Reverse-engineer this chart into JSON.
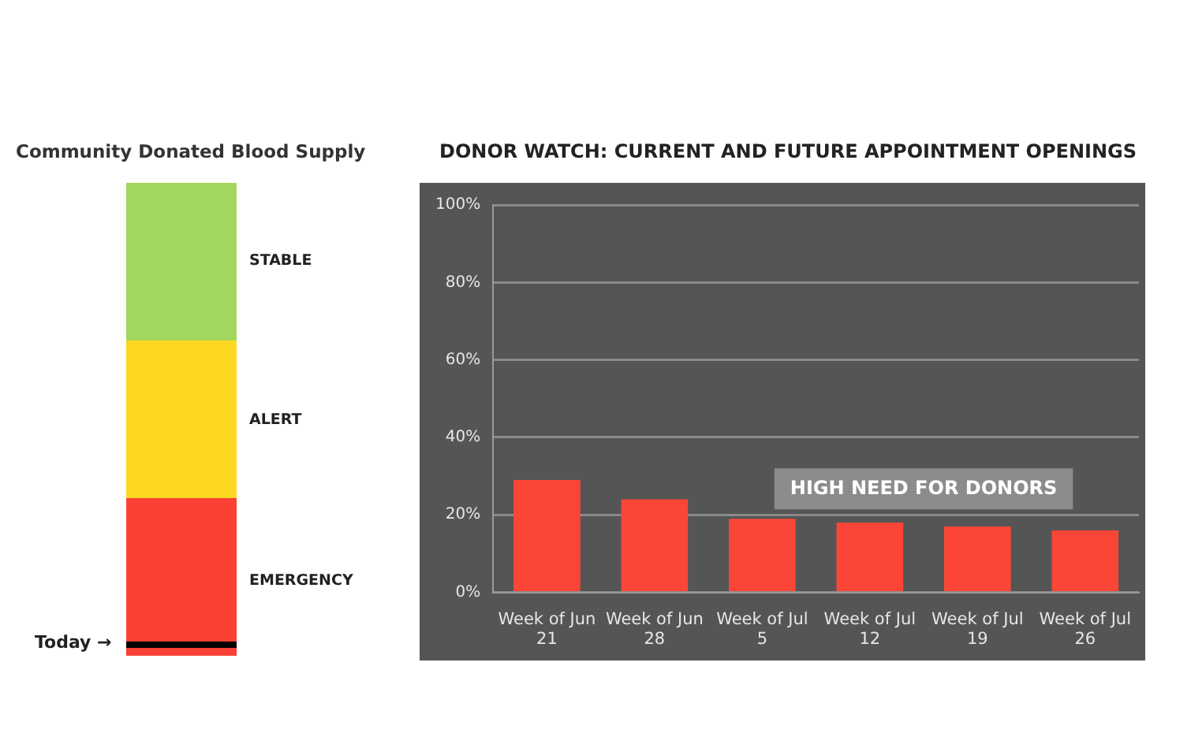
{
  "chart_data": [
    {
      "type": "other",
      "title": "Community Donated Blood Supply",
      "annotations": [
        "STABLE",
        "ALERT",
        "EMERGENCY",
        "Today →"
      ]
    },
    {
      "type": "bar",
      "title": "DONOR WATCH: CURRENT AND FUTURE APPOINTMENT OPENINGS",
      "categories": [
        "Week of Jun 21",
        "Week of Jun 28",
        "Week of Jul 5",
        "Week of Jul 12",
        "Week of Jul 19",
        "Week of Jul 26"
      ],
      "values": [
        29,
        24,
        19,
        18,
        17,
        16
      ],
      "color": "#fb4637",
      "ylim": [
        0,
        100
      ],
      "yticks": [
        {
          "value": 0,
          "label": "0%"
        },
        {
          "value": 20,
          "label": "20%"
        },
        {
          "value": 40,
          "label": "40%"
        },
        {
          "value": 60,
          "label": "60%"
        },
        {
          "value": 80,
          "label": "80%"
        },
        {
          "value": 100,
          "label": "100%"
        }
      ],
      "grid": "y",
      "annotations": [
        "HIGH NEED FOR DONORS"
      ]
    }
  ]
}
